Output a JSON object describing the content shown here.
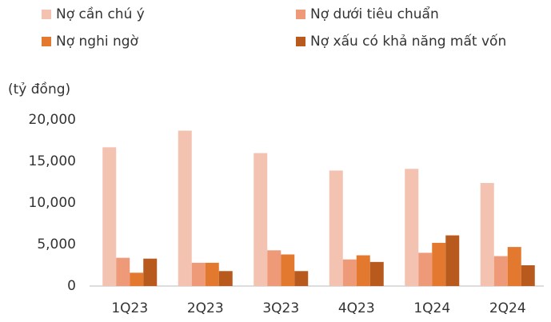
{
  "chart_data": {
    "type": "bar",
    "y_axis_label": "(tỷ đồng)",
    "categories": [
      "1Q23",
      "2Q23",
      "3Q23",
      "4Q23",
      "1Q24",
      "2Q24"
    ],
    "series": [
      {
        "name": "Nợ cần chú ý",
        "color": "#f4c2b0",
        "values": [
          16700,
          18700,
          16000,
          13900,
          14100,
          12400
        ]
      },
      {
        "name": "Nợ dưới tiêu chuẩn",
        "color": "#ee9a78",
        "values": [
          3400,
          2800,
          4300,
          3200,
          4000,
          3600
        ]
      },
      {
        "name": "Nợ nghi ngờ",
        "color": "#e3782f",
        "values": [
          1600,
          2800,
          3800,
          3700,
          5200,
          4700
        ]
      },
      {
        "name": "Nợ xấu có khả năng mất vốn",
        "color": "#b85a1e",
        "values": [
          3300,
          1800,
          1800,
          2900,
          6100,
          2500
        ]
      }
    ],
    "ylim": [
      0,
      20000
    ],
    "yticks": [
      0,
      {
        "value": 5000,
        "label": "5,000"
      },
      {
        "value": 10000,
        "label": "10,000"
      },
      {
        "value": 15000,
        "label": "15,000"
      },
      {
        "value": 20000,
        "label": "20,000"
      }
    ],
    "grid": false,
    "legend": "top"
  }
}
